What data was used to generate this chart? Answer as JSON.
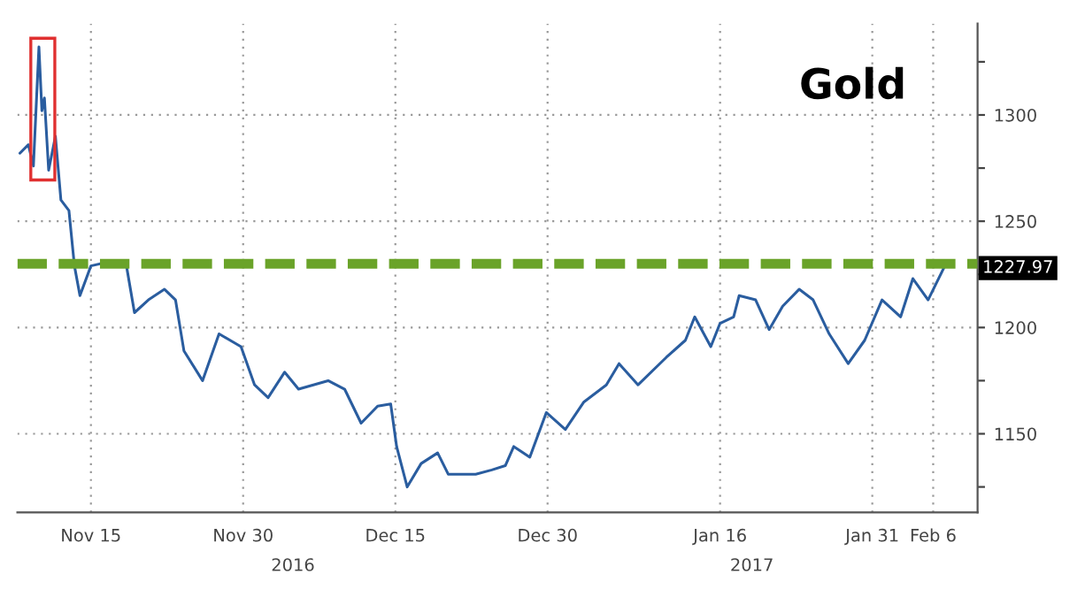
{
  "chart_data": {
    "type": "line",
    "title": "Gold",
    "x": [
      "2016-11-08T00:00",
      "2016-11-08T20:00",
      "2016-11-09T08:00",
      "2016-11-09T21:00",
      "2016-11-10T04:00",
      "2016-11-10T10:00",
      "2016-11-10T20:00",
      "2016-11-11T12:00",
      "2016-11-12T01:00",
      "2016-11-12T20:00",
      "2016-11-13T09:00",
      "2016-11-13T22:00",
      "2016-11-15T00:00",
      "2016-11-16T21:00",
      "2016-11-18T12:00",
      "2016-11-19T07:00",
      "2016-11-20T16:00",
      "2016-11-22T06:00",
      "2016-11-23T08:00",
      "2016-11-24T04:00",
      "2016-11-26T00:00",
      "2016-11-27T15:00",
      "2016-11-29T19:00",
      "2016-12-01T03:00",
      "2016-12-02T11:00",
      "2016-12-04T02:00",
      "2016-12-05T11:00",
      "2016-12-08T09:00",
      "2016-12-10T00:00",
      "2016-12-11T15:00",
      "2016-12-13T06:00",
      "2016-12-14T13:00",
      "2016-12-15T03:00",
      "2016-12-16T04:00",
      "2016-12-17T13:00",
      "2016-12-19T04:00",
      "2016-12-20T05:00",
      "2016-12-22T22:00",
      "2016-12-24T12:00",
      "2016-12-25T20:00",
      "2016-12-26T16:00",
      "2016-12-28T06:00",
      "2016-12-29T21:00",
      "2016-12-31T18:00",
      "2017-01-02T14:00",
      "2017-01-04T19:00",
      "2017-01-06T01:00",
      "2017-01-07T22:00",
      "2017-01-10T17:00",
      "2017-01-12T14:00",
      "2017-01-13T12:00",
      "2017-01-15T02:00",
      "2017-01-16T00:00",
      "2017-01-17T08:00",
      "2017-01-17T21:00",
      "2017-01-19T12:00",
      "2017-01-20T20:00",
      "2017-01-22T04:00",
      "2017-01-23T19:00",
      "2017-01-25T04:00",
      "2017-01-26T18:00",
      "2017-01-28T15:00",
      "2017-01-30T06:00",
      "2017-01-31T23:00",
      "2017-02-02T19:00",
      "2017-02-04T00:00",
      "2017-02-05T12:00",
      "2017-02-07T01:00"
    ],
    "series": [
      {
        "color": "#2a5d9f",
        "values": [
          1282,
          1286,
          1276,
          1332,
          1302,
          1308,
          1274,
          1290,
          1260,
          1255,
          1229,
          1215,
          1229,
          1231,
          1229,
          1207,
          1213,
          1218,
          1213,
          1189,
          1175,
          1197,
          1191,
          1173,
          1167,
          1179,
          1171,
          1175,
          1171,
          1155,
          1163,
          1164,
          1144,
          1125,
          1136,
          1141,
          1131,
          1131,
          1133,
          1135,
          1144,
          1139,
          1160,
          1152,
          1165,
          1173,
          1183,
          1173,
          1186,
          1194,
          1205,
          1191,
          1202,
          1205,
          1215,
          1213,
          1199,
          1210,
          1218,
          1213,
          1197,
          1183,
          1194,
          1213,
          1205,
          1223,
          1213,
          1227.97
        ]
      }
    ],
    "xlim": [
      "2016-11-07T18:00",
      "2017-02-10T09:00"
    ],
    "xticks": [
      {
        "value": "2016-11-15",
        "label": "Nov 15"
      },
      {
        "value": "2016-11-30",
        "label": "Nov 30"
      },
      {
        "value": "2016-12-15",
        "label": "Dec 15"
      },
      {
        "value": "2016-12-30",
        "label": "Dec 30"
      },
      {
        "value": "2017-01-16",
        "label": "Jan 16"
      },
      {
        "value": "2017-01-31",
        "label": "Jan 31"
      },
      {
        "value": "2017-02-06",
        "label": "Feb 6"
      }
    ],
    "ylim": [
      1113,
      1343
    ],
    "yticks": [
      {
        "value": 1125,
        "label": null
      },
      1150,
      {
        "value": 1175,
        "label": null
      },
      1200,
      {
        "value": 1225,
        "label": null
      },
      1250,
      {
        "value": 1275,
        "label": null
      },
      1300,
      {
        "value": 1325,
        "label": null
      }
    ],
    "grid": true,
    "ref_lines": [
      {
        "axis": "y",
        "value": 1230,
        "color": "#6aa329",
        "line_style": "dashed"
      }
    ],
    "annotations": [
      "2016",
      "2017",
      {
        "text": "1227.97",
        "x": "2017-02-07T01:00",
        "y": 1227.97
      }
    ]
  }
}
